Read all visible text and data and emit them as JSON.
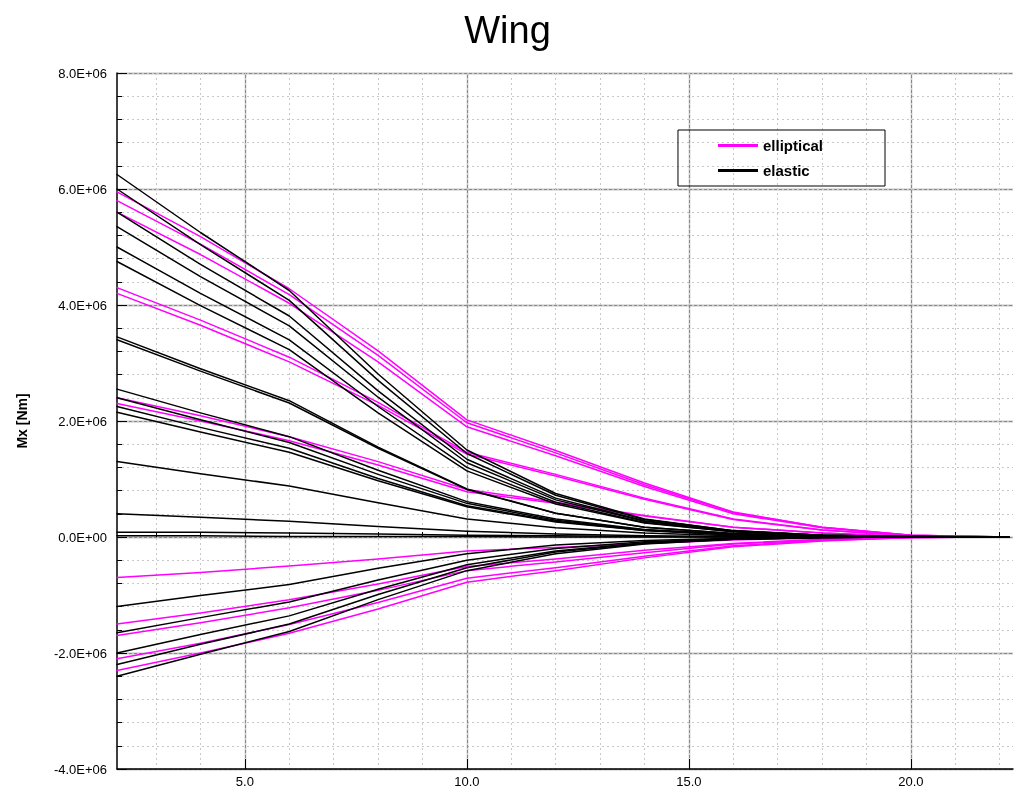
{
  "chart_data": {
    "type": "line",
    "title": "Wing",
    "ylabel": "Mx [Nm]",
    "x": [
      2.12,
      4,
      6,
      8,
      10,
      12,
      14,
      16,
      18,
      20,
      22.2
    ],
    "xlim": [
      2.12,
      22.3
    ],
    "xticks": [
      {
        "value": 5,
        "label": "5.0"
      },
      {
        "value": 10,
        "label": "10.0"
      },
      {
        "value": 15,
        "label": "15.0"
      },
      {
        "value": 20,
        "label": "20.0"
      }
    ],
    "ylim": [
      -4000000,
      8000000
    ],
    "yticks": [
      {
        "value": -4000000,
        "label": "-4.0E+06"
      },
      {
        "value": -2000000,
        "label": "-2.0E+06"
      },
      {
        "value": 0,
        "label": "0.0E+00"
      },
      {
        "value": 2000000,
        "label": "2.0E+06"
      },
      {
        "value": 4000000,
        "label": "4.0E+06"
      },
      {
        "value": 6000000,
        "label": "6.0E+06"
      },
      {
        "value": 8000000,
        "label": "8.0E+06"
      }
    ],
    "grid": true,
    "legend": "top right",
    "marker": "none",
    "line_style": "solid",
    "series": [
      {
        "name": "elliptical",
        "color": "#ff00ff",
        "values": [
          5950000.0,
          5180000.0,
          4280000.0,
          3210000.0,
          2020000.0,
          1490000.0,
          930000.0,
          430000.0,
          170000.0,
          30000.0,
          0
        ]
      },
      {
        "color": "#ff00ff",
        "values": [
          5800000.0,
          5050000.0,
          4180000.0,
          3130000.0,
          1970000.0,
          1450000.0,
          900000.0,
          420000.0,
          170000.0,
          30000.0,
          0
        ]
      },
      {
        "color": "#ff00ff",
        "values": [
          5600000.0,
          4870000.0,
          4030000.0,
          3020000.0,
          1900000.0,
          1400000.0,
          870000.0,
          400000.0,
          160000.0,
          30000.0,
          0
        ]
      },
      {
        "color": "#ff00ff",
        "values": [
          4300000.0,
          3740000.0,
          3100000.0,
          2320000.0,
          1460000.0,
          1080000.0,
          670000.0,
          310000.0,
          120000.0,
          20000.0,
          0
        ]
      },
      {
        "color": "#ff00ff",
        "values": [
          4200000.0,
          3650000.0,
          3020000.0,
          2270000.0,
          1430000.0,
          1050000.0,
          650000.0,
          300000.0,
          120000.0,
          20000.0,
          0
        ]
      },
      {
        "color": "#ff00ff",
        "values": [
          2400000.0,
          2090000.0,
          1730000.0,
          1300000.0,
          820000.0,
          600000.0,
          370000.0,
          170000.0,
          70000.0,
          10000.0,
          0
        ]
      },
      {
        "color": "#ff00ff",
        "values": [
          2300000.0,
          2000000.0,
          1660000.0,
          1240000.0,
          780000.0,
          580000.0,
          360000.0,
          170000.0,
          70000.0,
          10000.0,
          0
        ]
      },
      {
        "color": "#ff00ff",
        "values": [
          -700000.0,
          -610000.0,
          -500000.0,
          -380000.0,
          -240000.0,
          -180000.0,
          -110000.0,
          -50000.0,
          -20000.0,
          0,
          0
        ]
      },
      {
        "color": "#ff00ff",
        "values": [
          -1500000.0,
          -1310000.0,
          -1080000.0,
          -810000.0,
          -510000.0,
          -380000.0,
          -230000.0,
          -110000.0,
          -40000.0,
          -10000.0,
          0
        ]
      },
      {
        "color": "#ff00ff",
        "values": [
          -1700000.0,
          -1480000.0,
          -1220000.0,
          -920000.0,
          -580000.0,
          -430000.0,
          -270000.0,
          -120000.0,
          -50000.0,
          -10000.0,
          0
        ]
      },
      {
        "color": "#ff00ff",
        "values": [
          -2100000.0,
          -1830000.0,
          -1510000.0,
          -1130000.0,
          -710000.0,
          -530000.0,
          -330000.0,
          -150000.0,
          -60000.0,
          -10000.0,
          0
        ]
      },
      {
        "color": "#ff00ff",
        "values": [
          -2300000.0,
          -2000000.0,
          -1660000.0,
          -1240000.0,
          -780000.0,
          -580000.0,
          -360000.0,
          -170000.0,
          -70000.0,
          -10000.0,
          0
        ]
      },
      {
        "name": "elastic",
        "color": "#000000",
        "values": [
          6250000.0,
          5250000.0,
          4250000.0,
          2810000.0,
          1500000.0,
          750000.0,
          310000.0,
          110000.0,
          30000.0,
          10000.0,
          0
        ]
      },
      {
        "color": "#000000",
        "values": [
          6000000.0,
          5040000.0,
          4080000.0,
          2700000.0,
          1440000.0,
          720000.0,
          300000.0,
          110000.0,
          30000.0,
          10000.0,
          0
        ]
      },
      {
        "color": "#000000",
        "values": [
          5600000.0,
          4700000.0,
          3810000.0,
          2520000.0,
          1340000.0,
          670000.0,
          280000.0,
          100000.0,
          30000.0,
          10000.0,
          0
        ]
      },
      {
        "color": "#000000",
        "values": [
          5350000.0,
          4490000.0,
          3640000.0,
          2410000.0,
          1280000.0,
          640000.0,
          270000.0,
          100000.0,
          30000.0,
          10000.0,
          0
        ]
      },
      {
        "color": "#000000",
        "values": [
          5000000.0,
          4200000.0,
          3400000.0,
          2250000.0,
          1200000.0,
          600000.0,
          250000.0,
          90000.0,
          30000.0,
          0,
          0
        ]
      },
      {
        "color": "#000000",
        "values": [
          4750000.0,
          3990000.0,
          3230000.0,
          2140000.0,
          1140000.0,
          570000.0,
          240000.0,
          90000.0,
          20000.0,
          0,
          0
        ]
      },
      {
        "color": "#000000",
        "values": [
          3450000.0,
          2900000.0,
          2350000.0,
          1550000.0,
          830000.0,
          410000.0,
          170000.0,
          60000.0,
          20000.0,
          0,
          0
        ]
      },
      {
        "color": "#000000",
        "values": [
          3400000.0,
          2860000.0,
          2310000.0,
          1530000.0,
          820000.0,
          410000.0,
          170000.0,
          60000.0,
          20000.0,
          0,
          0
        ]
      },
      {
        "color": "#000000",
        "values": [
          2550000.0,
          2140000.0,
          1730000.0,
          1150000.0,
          610000.0,
          310000.0,
          130000.0,
          50000.0,
          10000.0,
          0,
          0
        ]
      },
      {
        "color": "#000000",
        "values": [
          2400000.0,
          2020000.0,
          1630000.0,
          1080000.0,
          580000.0,
          290000.0,
          120000.0,
          40000.0,
          10000.0,
          0,
          0
        ]
      },
      {
        "color": "#000000",
        "values": [
          2250000.0,
          1890000.0,
          1530000.0,
          1010000.0,
          540000.0,
          270000.0,
          110000.0,
          40000.0,
          10000.0,
          0,
          0
        ]
      },
      {
        "color": "#000000",
        "values": [
          2150000.0,
          1810000.0,
          1460000.0,
          970000.0,
          520000.0,
          260000.0,
          110000.0,
          40000.0,
          10000.0,
          0,
          0
        ]
      },
      {
        "color": "#000000",
        "values": [
          1300000.0,
          1090000.0,
          880000.0,
          590000.0,
          310000.0,
          160000.0,
          70000.0,
          20000.0,
          10000.0,
          0,
          0
        ]
      },
      {
        "color": "#000000",
        "values": [
          400000.0,
          340000.0,
          270000.0,
          180000.0,
          100000.0,
          50000.0,
          20000.0,
          10000.0,
          0,
          0,
          0
        ]
      },
      {
        "color": "#000000",
        "values": [
          80000.0,
          80000.0,
          70000.0,
          50000.0,
          30000.0,
          20000.0,
          10000.0,
          0,
          0,
          0,
          0
        ]
      },
      {
        "color": "#000000",
        "values": [
          20000.0,
          20000.0,
          10000.0,
          10000.0,
          10000.0,
          0,
          0,
          0,
          0,
          0,
          0
        ]
      },
      {
        "color": "#000000",
        "values": [
          -1200000.0,
          -1010000.0,
          -820000.0,
          -540000.0,
          -290000.0,
          -140000.0,
          -60000.0,
          -20000.0,
          -10000.0,
          0,
          0
        ]
      },
      {
        "color": "#000000",
        "values": [
          -1650000.0,
          -1390000.0,
          -1120000.0,
          -740000.0,
          -400000.0,
          -200000.0,
          -80000.0,
          -30000.0,
          -10000.0,
          0,
          0
        ]
      },
      {
        "color": "#000000",
        "values": [
          -2000000.0,
          -1680000.0,
          -1360000.0,
          -900000.0,
          -480000.0,
          -240000.0,
          -100000.0,
          -40000.0,
          -10000.0,
          0,
          0
        ]
      },
      {
        "color": "#000000",
        "values": [
          -2200000.0,
          -1850000.0,
          -1500000.0,
          -990000.0,
          -530000.0,
          -260000.0,
          -110000.0,
          -40000.0,
          -10000.0,
          0,
          0
        ]
      },
      {
        "color": "#000000",
        "values": [
          -2400000.0,
          -2020000.0,
          -1630000.0,
          -1080000.0,
          -580000.0,
          -290000.0,
          -120000.0,
          -40000.0,
          -10000.0,
          0,
          0
        ]
      }
    ]
  }
}
